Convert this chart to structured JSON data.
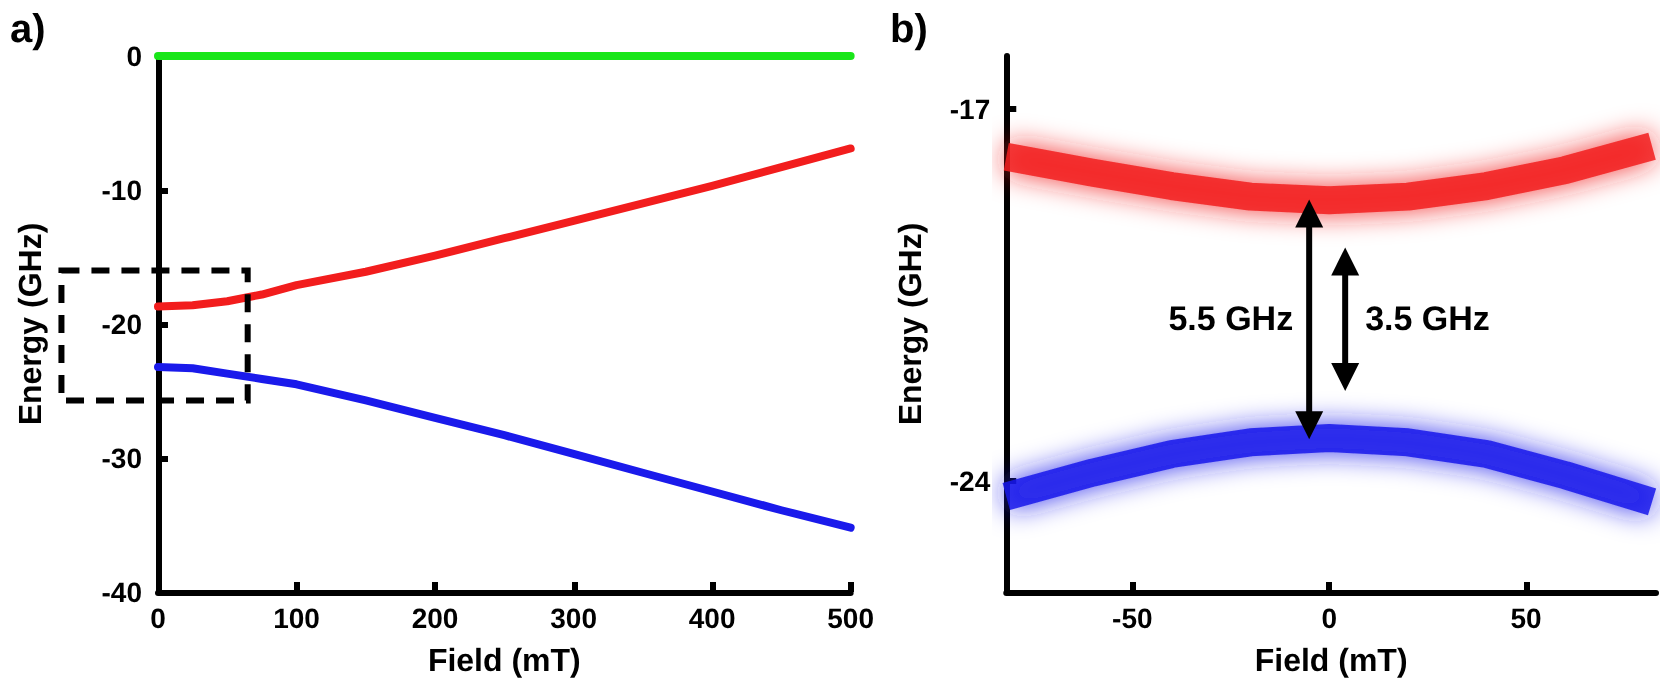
{
  "chart_data": [
    {
      "type": "line",
      "title": "a)",
      "xlabel": "Field (mT)",
      "ylabel": "Energy (GHz)",
      "xlim": [
        0,
        500
      ],
      "xticks": [
        0,
        100,
        200,
        300,
        400,
        500
      ],
      "ylim": [
        -40,
        0
      ],
      "yticks": [
        -40,
        -30,
        -20,
        -10,
        0
      ],
      "grid": false,
      "marker": "none",
      "line_style": "solid",
      "x": [
        0,
        25,
        50,
        75,
        100,
        150,
        200,
        250,
        300,
        350,
        400,
        450,
        500
      ],
      "series": [
        {
          "color": "#19e619",
          "x": [
            0,
            500
          ],
          "values": [
            0,
            0
          ]
        },
        {
          "color": "#f21d1d",
          "values": [
            -18.7,
            -18.6,
            -18.3,
            -17.8,
            -17.1,
            -16.1,
            -14.9,
            -13.6,
            -12.3,
            -11.0,
            -9.7,
            -8.3,
            -6.9
          ]
        },
        {
          "color": "#1a1aeb",
          "values": [
            -23.2,
            -23.3,
            -23.7,
            -24.1,
            -24.5,
            -25.7,
            -27.0,
            -28.3,
            -29.7,
            -31.1,
            -32.5,
            -33.9,
            -35.2
          ]
        }
      ]
    },
    {
      "type": "line",
      "title": "b)",
      "xlabel": "Field (mT)",
      "ylabel": "Energy (GHz)",
      "xlim": [
        -82,
        83
      ],
      "xticks": [
        -50,
        0,
        50
      ],
      "ylim": [
        -26.1,
        -16
      ],
      "yticks": [
        -24,
        -17
      ],
      "grid": false,
      "marker": "none",
      "line_style": "solid",
      "x": [
        -82,
        -60,
        -40,
        -20,
        0,
        20,
        40,
        60,
        82
      ],
      "series": [
        {
          "color": "#f21d1d",
          "values": [
            -17.9,
            -18.2,
            -18.45,
            -18.65,
            -18.72,
            -18.65,
            -18.45,
            -18.15,
            -17.7
          ]
        },
        {
          "color": "#1a1aeb",
          "values": [
            -24.3,
            -23.85,
            -23.5,
            -23.28,
            -23.2,
            -23.28,
            -23.5,
            -23.9,
            -24.4
          ]
        }
      ],
      "annotations": [
        "5.5 GHz",
        "3.5 GHz"
      ]
    }
  ]
}
